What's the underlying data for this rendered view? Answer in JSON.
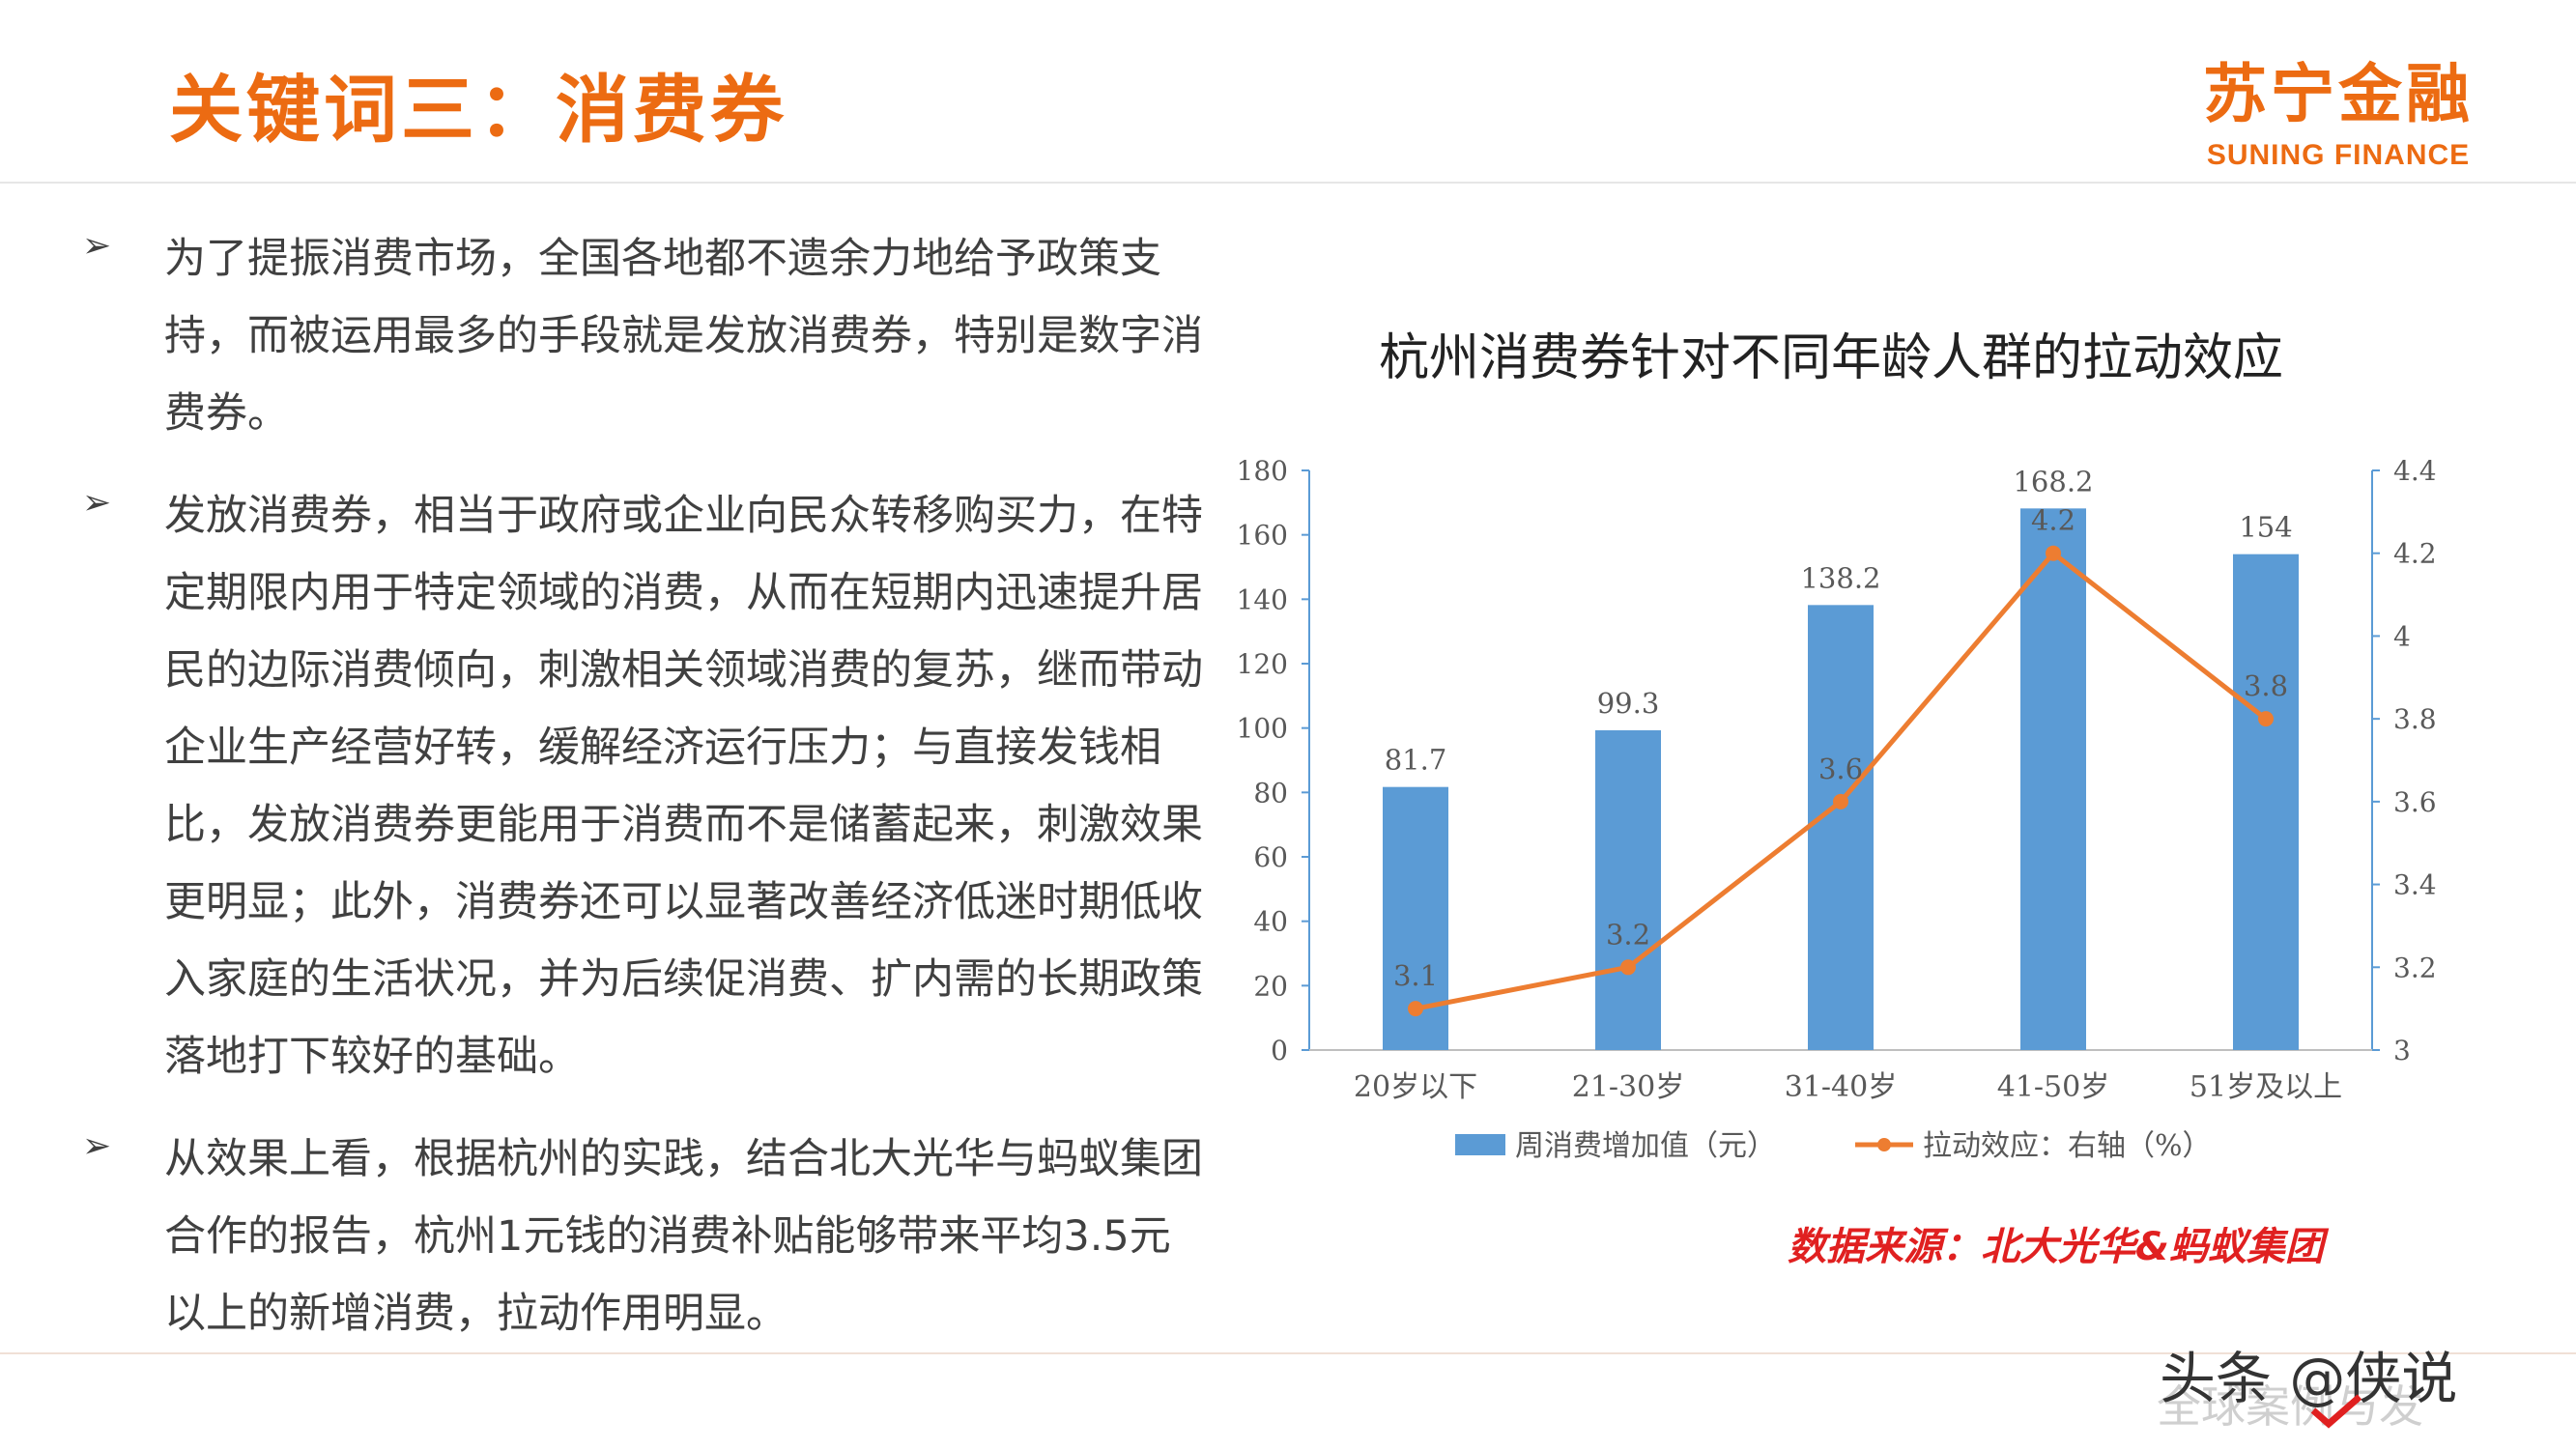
{
  "header": {
    "title": "关键词三：消费券",
    "logo_cn": "苏宁金融",
    "logo_en": "SUNING FINANCE"
  },
  "bullets": [
    {
      "icon": "arrow-bullet-icon",
      "marker": "➢",
      "text": "为了提振消费市场，全国各地都不遗余力地给予政策支持，而被运用最多的手段就是发放消费券，特别是数字消费券。"
    },
    {
      "icon": "arrow-bullet-icon",
      "marker": "➢",
      "text": "发放消费券，相当于政府或企业向民众转移购买力，在特定期限内用于特定领域的消费，从而在短期内迅速提升居民的边际消费倾向，刺激相关领域消费的复苏，继而带动企业生产经营好转，缓解经济运行压力；与直接发钱相比，发放消费券更能用于消费而不是储蓄起来，刺激效果更明显；此外，消费券还可以显著改善经济低迷时期低收入家庭的生活状况，并为后续促消费、扩内需的长期政策落地打下较好的基础。"
    },
    {
      "icon": "arrow-bullet-icon",
      "marker": "➢",
      "text": "从效果上看，根据杭州的实践，结合北大光华与蚂蚁集团合作的报告，杭州1元钱的消费补贴能够带来平均3.5元以上的新增消费，拉动作用明显。"
    }
  ],
  "chart_data": {
    "type": "bar",
    "title": "杭州消费券针对不同年龄人群的拉动效应",
    "categories": [
      "20岁以下",
      "21-30岁",
      "31-40岁",
      "41-50岁",
      "51岁及以上"
    ],
    "series": [
      {
        "name": "周消费增加值（元）",
        "type": "bar",
        "axis": "left",
        "values": [
          81.7,
          99.3,
          138.2,
          168.2,
          154
        ],
        "labels": [
          "81.7",
          "99.3",
          "138.2",
          "168.2",
          "154"
        ]
      },
      {
        "name": "拉动效应：右轴（%）",
        "type": "line",
        "axis": "right",
        "values": [
          3.1,
          3.2,
          3.6,
          4.2,
          3.8
        ],
        "labels": [
          "3.1",
          "3.2",
          "3.6",
          "4.2",
          "3.8"
        ]
      }
    ],
    "ylim": [
      0,
      180
    ],
    "yticks": [
      "0",
      "20",
      "40",
      "60",
      "80",
      "100",
      "120",
      "140",
      "160",
      "180"
    ],
    "y2lim": [
      3,
      4.4
    ],
    "y2ticks": [
      "3",
      "3.2",
      "3.4",
      "3.6",
      "3.8",
      "4",
      "4.2",
      "4.4"
    ],
    "legend_position": "bottom",
    "grid": false,
    "colors": {
      "bar": "#5b9bd5",
      "line": "#ed7d31",
      "axis": "#5b9bd5",
      "text": "#595959"
    }
  },
  "source": "数据来源：北大光华&蚂蚁集团",
  "watermark": {
    "text": "头条 @侠说",
    "faint_text": "全球案例与发",
    "icon": "check-icon"
  }
}
